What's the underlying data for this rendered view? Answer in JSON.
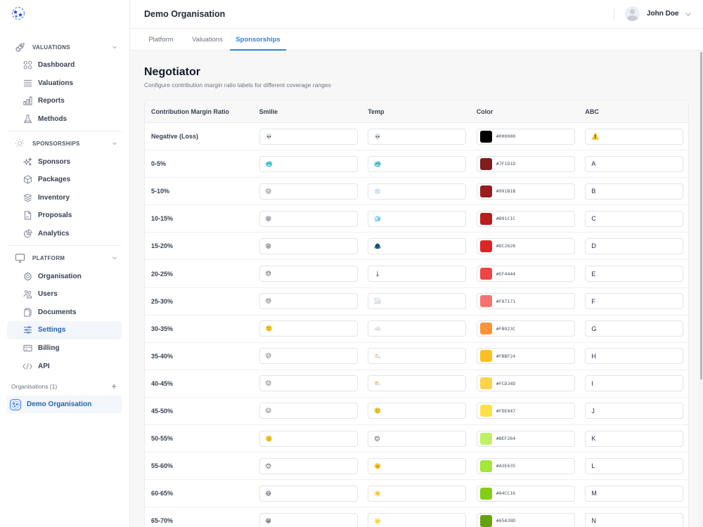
{
  "sidebar": {
    "sections": [
      {
        "title": "VALUATIONS",
        "icon": "rocket-icon",
        "items": [
          {
            "label": "Dashboard",
            "icon": "grid-icon"
          },
          {
            "label": "Valuations",
            "icon": "list-icon"
          },
          {
            "label": "Reports",
            "icon": "bar-chart-icon"
          },
          {
            "label": "Methods",
            "icon": "flask-icon"
          }
        ]
      },
      {
        "title": "SPONSORSHIPS",
        "icon": "sun-icon",
        "items": [
          {
            "label": "Sponsors",
            "icon": "sparkles-icon"
          },
          {
            "label": "Packages",
            "icon": "cube-icon"
          },
          {
            "label": "Inventory",
            "icon": "layers-icon"
          },
          {
            "label": "Proposals",
            "icon": "document-icon"
          },
          {
            "label": "Analytics",
            "icon": "pie-chart-icon"
          }
        ]
      },
      {
        "title": "PLATFORM",
        "icon": "monitor-icon",
        "items": [
          {
            "label": "Organisation",
            "icon": "gear-icon"
          },
          {
            "label": "Users",
            "icon": "users-icon"
          },
          {
            "label": "Documents",
            "icon": "documents-icon"
          },
          {
            "label": "Settings",
            "icon": "sliders-icon",
            "active": true
          },
          {
            "label": "Billing",
            "icon": "credit-card-icon"
          },
          {
            "label": "API",
            "icon": "code-icon"
          }
        ]
      }
    ],
    "organisations_label": "Organisations (1)",
    "add_org": "+",
    "current_org": "Demo Organisation"
  },
  "header": {
    "title": "Demo Organisation",
    "user_name": "John Doe"
  },
  "tabs": [
    {
      "label": "Platform",
      "active": false
    },
    {
      "label": "Valuations",
      "active": false
    },
    {
      "label": "Sponsorships",
      "active": true
    }
  ],
  "page": {
    "title": "Negotiator",
    "subtitle": "Configure contribution margin ratio labels for different coverage ranges"
  },
  "table": {
    "headers": [
      "Contribution Margin Ratio",
      "Smilie",
      "Temp",
      "Color",
      "ABC"
    ],
    "rows": [
      {
        "range": "Negative (Loss)",
        "smilie": "💀",
        "temp": "💀",
        "color": "#000000",
        "abc": "⚠️"
      },
      {
        "range": "0-5%",
        "smilie": "🥶",
        "temp": "🥶",
        "color": "#7F1D1D",
        "abc": "A"
      },
      {
        "range": "5-10%",
        "smilie": "😖",
        "temp": "❄️",
        "color": "#991B1B",
        "abc": "B"
      },
      {
        "range": "10-15%",
        "smilie": "😫",
        "temp": "🧊",
        "color": "#B91C1C",
        "abc": "C"
      },
      {
        "range": "15-20%",
        "smilie": "😩",
        "temp": "🧥",
        "color": "#DC2626",
        "abc": "D"
      },
      {
        "range": "20-25%",
        "smilie": "😞",
        "temp": "🌡️",
        "color": "#EF4444",
        "abc": "E"
      },
      {
        "range": "25-30%",
        "smilie": "😔",
        "temp": "🌫️",
        "color": "#F87171",
        "abc": "F"
      },
      {
        "range": "30-35%",
        "smilie": "🙁",
        "temp": "☁️",
        "color": "#FB923C",
        "abc": "G"
      },
      {
        "range": "35-40%",
        "smilie": "😕",
        "temp": "🌥️",
        "color": "#FBBF24",
        "abc": "H"
      },
      {
        "range": "40-45%",
        "smilie": "😐",
        "temp": "⛅",
        "color": "#FCD34D",
        "abc": "I"
      },
      {
        "range": "45-50%",
        "smilie": "😑",
        "temp": "🙂",
        "color": "#FDE047",
        "abc": "J"
      },
      {
        "range": "50-55%",
        "smilie": "🙂",
        "temp": "😊",
        "color": "#BEF264",
        "abc": "K"
      },
      {
        "range": "55-60%",
        "smilie": "😊",
        "temp": "🌞",
        "color": "#A3E635",
        "abc": "L"
      },
      {
        "range": "60-65%",
        "smilie": "😄",
        "temp": "☀️",
        "color": "#84CC16",
        "abc": "M"
      },
      {
        "range": "65-70%",
        "smilie": "😁",
        "temp": "🌟",
        "color": "#65A30D",
        "abc": "N"
      }
    ]
  },
  "colors": {
    "accent": "#2B86D9",
    "active_nav_text": "#2563A8",
    "active_nav_bg": "#F3F6FA"
  }
}
